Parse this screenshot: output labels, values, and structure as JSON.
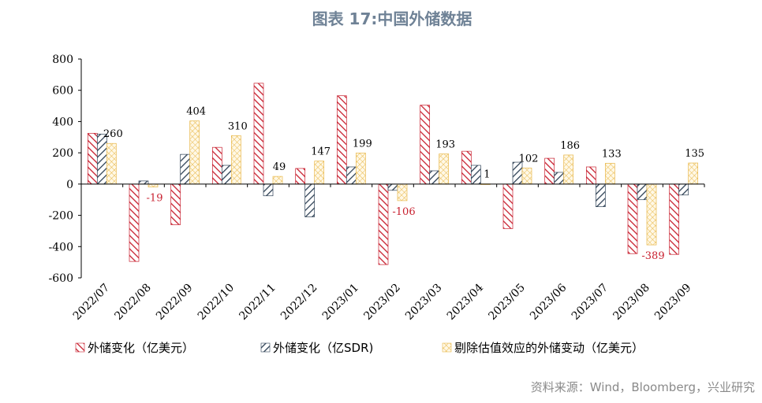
{
  "chart_data": {
    "type": "bar",
    "title": "图表 17:中国外储数据",
    "categories": [
      "2022/07",
      "2022/08",
      "2022/09",
      "2022/10",
      "2022/11",
      "2022/12",
      "2023/01",
      "2023/02",
      "2023/03",
      "2023/04",
      "2023/05",
      "2023/06",
      "2023/07",
      "2023/08",
      "2023/09"
    ],
    "series": [
      {
        "name": "外储变化（亿美元）",
        "color": "#c8202f",
        "values": [
          325,
          -495,
          -260,
          235,
          645,
          100,
          565,
          -515,
          505,
          210,
          -285,
          165,
          110,
          -445,
          -450
        ]
      },
      {
        "name": "外储变化（亿SDR)",
        "color": "#2f4256",
        "values": [
          320,
          20,
          190,
          120,
          -75,
          -210,
          110,
          -40,
          85,
          120,
          140,
          75,
          -145,
          -100,
          -70
        ]
      },
      {
        "name": "剔除估值效应的外储变动（亿美元）",
        "color": "#e8b84a",
        "values": [
          260,
          -19,
          404,
          310,
          49,
          147,
          199,
          -106,
          193,
          1,
          102,
          186,
          133,
          -389,
          135
        ]
      }
    ],
    "data_labels": [
      "260",
      "-19",
      "404",
      "310",
      "49",
      "147",
      "199",
      "-106",
      "193",
      "1",
      "102",
      "186",
      "133",
      "-389",
      "135"
    ],
    "y_ticks": [
      "800",
      "600",
      "400",
      "200",
      "0",
      "-200",
      "-400",
      "-600"
    ],
    "ylim": [
      -600,
      800
    ],
    "xlabel": "",
    "ylabel": "",
    "legend_position": "bottom"
  },
  "source": "资料来源：Wind，Bloomberg，兴业研究"
}
